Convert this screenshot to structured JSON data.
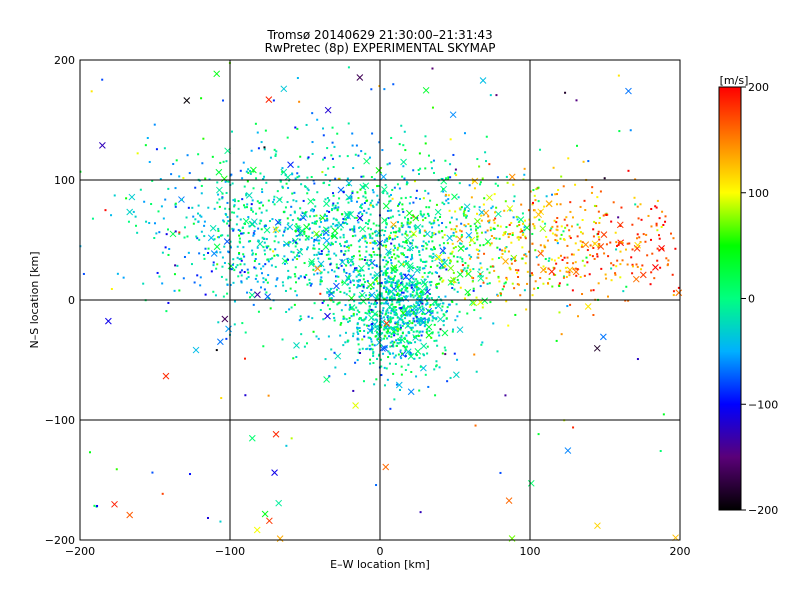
{
  "chart_data": {
    "type": "scatter",
    "title": "Tromsø 20140629 21:30:00–21:31:43",
    "subtitle": "RwPretec (8p) EXPERIMENTAL SKYMAP",
    "xlabel": "E–W location [km]",
    "ylabel": "N–S location [km]",
    "xlim": [
      -200,
      200
    ],
    "ylim": [
      -200,
      200
    ],
    "xticks": [
      "-200",
      "-100",
      "0",
      "100",
      "200"
    ],
    "yticks": [
      "-200",
      "-100",
      "0",
      "100",
      "200"
    ],
    "grid": true,
    "colorbar": {
      "label": "[m/s]",
      "range": [
        -200,
        200
      ],
      "ticks": [
        "200",
        "100",
        "0",
        "-100",
        "-200"
      ],
      "colormap": [
        "#000000",
        "#5a0078",
        "#0000ff",
        "#00b0ff",
        "#00ff80",
        "#00ff00",
        "#ffff00",
        "#ff8000",
        "#ff0000"
      ]
    },
    "marker_types": [
      "dot",
      "x"
    ],
    "clusters": [
      {
        "region": "central",
        "x_center": 10,
        "y_center": -10,
        "x_spread": 20,
        "y_spread": 25,
        "velocity_mean": -20
      },
      {
        "region": "north-central",
        "x_center": -10,
        "y_center": 55,
        "x_spread": 60,
        "y_spread": 35,
        "velocity_mean": -10
      },
      {
        "region": "north-east",
        "x_center": 110,
        "y_center": 45,
        "x_spread": 55,
        "y_spread": 25,
        "velocity_mean": 110
      },
      {
        "region": "north-west",
        "x_center": -60,
        "y_center": 60,
        "x_spread": 45,
        "y_spread": 35,
        "velocity_mean": -40
      }
    ]
  }
}
